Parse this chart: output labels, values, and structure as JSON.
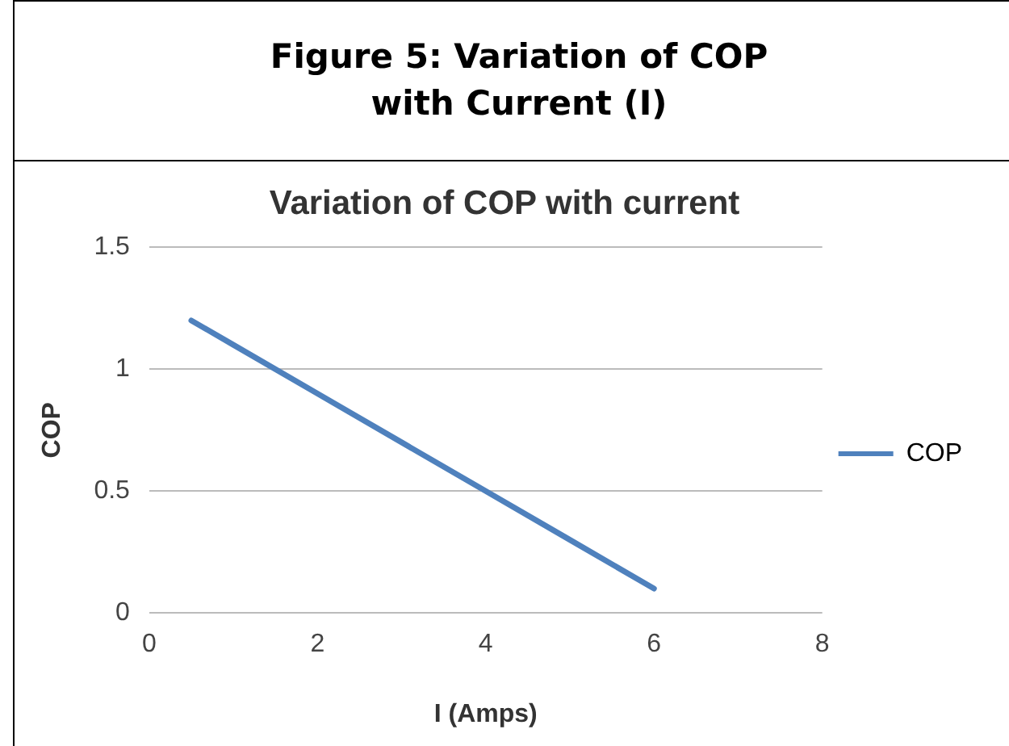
{
  "chart_data": {
    "type": "line",
    "title": "Variation of COP with current",
    "xlabel": "I (Amps)",
    "ylabel": "COP",
    "annotations": [
      "Figure 5: Variation of COP with Current (I)"
    ],
    "x": [
      0.5,
      1,
      2,
      3,
      4,
      5,
      6
    ],
    "series": [
      {
        "name": "COP",
        "color": "#4f81bd",
        "values": [
          1.2,
          1.1,
          0.9,
          0.7,
          0.5,
          0.3,
          0.1
        ]
      }
    ],
    "xlim": [
      0,
      8
    ],
    "xticks": [
      0,
      2,
      4,
      6,
      8
    ],
    "ylim": [
      0,
      1.5
    ],
    "yticks": [
      0,
      0.5,
      1,
      1.5
    ],
    "grid": "y",
    "legend": "right",
    "marker": "none",
    "line_style": "solid"
  }
}
